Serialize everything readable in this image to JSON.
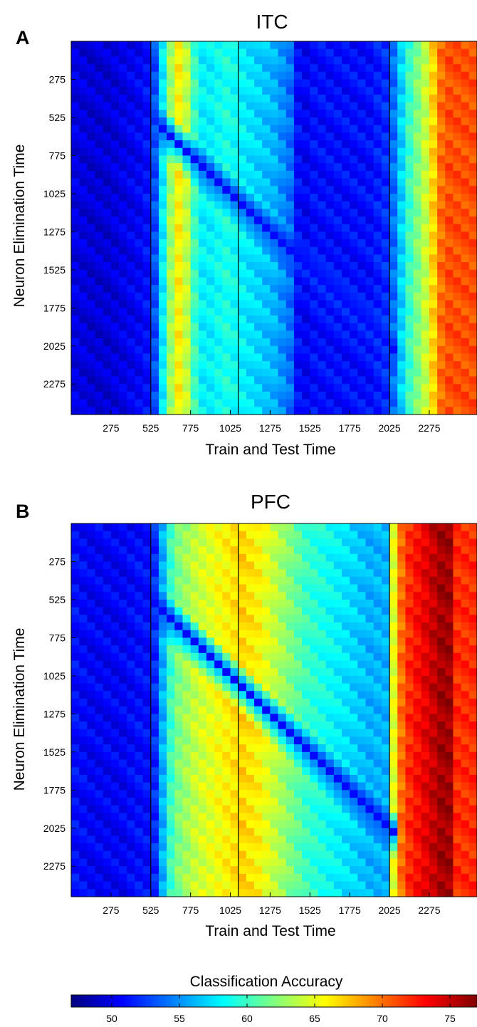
{
  "chart_data": [
    {
      "type": "heatmap",
      "panel_letter": "A",
      "title": "ITC",
      "xlabel": "Train and Test Time",
      "ylabel": "Neuron Elimination Time",
      "x_ticks": [
        275,
        525,
        775,
        1025,
        1275,
        1525,
        1775,
        2025,
        2275
      ],
      "y_ticks": [
        275,
        525,
        775,
        1025,
        1275,
        1525,
        1775,
        2025,
        2275
      ],
      "xlim": [
        25,
        2575
      ],
      "ylim": [
        25,
        2475
      ],
      "bin_width": 50,
      "vertical_lines": [
        525,
        1075,
        2025
      ],
      "profile_times": [
        50,
        150,
        250,
        350,
        450,
        500,
        550,
        600,
        650,
        700,
        750,
        800,
        850,
        900,
        1000,
        1100,
        1200,
        1300,
        1400,
        1450,
        1500,
        1550,
        1600,
        1700,
        1800,
        1900,
        2000,
        2050,
        2100,
        2150,
        2200,
        2250,
        2300,
        2350,
        2400,
        2450
      ],
      "profile_accuracy": [
        50,
        49.5,
        49.5,
        50,
        50.5,
        51,
        53,
        58,
        63,
        66,
        64,
        60,
        58,
        58,
        59,
        58,
        57,
        56,
        54,
        51,
        50.5,
        51,
        51,
        51,
        51,
        51,
        52,
        54,
        57,
        60,
        62,
        64,
        67,
        70,
        71,
        71
      ],
      "notes_elimination": "accuracy drops to about 52% where train and test time equals neuron elimination time"
    },
    {
      "type": "heatmap",
      "panel_letter": "B",
      "title": "PFC",
      "xlabel": "Train and Test Time",
      "ylabel": "Neuron Elimination Time",
      "x_ticks": [
        275,
        525,
        775,
        1025,
        1275,
        1525,
        1775,
        2025,
        2275
      ],
      "y_ticks": [
        275,
        525,
        775,
        1025,
        1275,
        1525,
        1775,
        2025,
        2275
      ],
      "xlim": [
        25,
        2575
      ],
      "ylim": [
        25,
        2475
      ],
      "bin_width": 50,
      "vertical_lines": [
        525,
        1075,
        2025
      ],
      "profile_times": [
        50,
        150,
        250,
        350,
        450,
        500,
        550,
        600,
        650,
        700,
        800,
        900,
        1000,
        1100,
        1200,
        1300,
        1400,
        1500,
        1600,
        1700,
        1800,
        1900,
        2000,
        2050,
        2100,
        2150,
        2200,
        2250,
        2300,
        2350,
        2400,
        2450
      ],
      "profile_accuracy": [
        51,
        50.5,
        50.5,
        50.5,
        51,
        51,
        52,
        56,
        60,
        62,
        64,
        65,
        66,
        67,
        66,
        64,
        62,
        60,
        59,
        58,
        57,
        56,
        56,
        65,
        70,
        72,
        73,
        74,
        75,
        76,
        76,
        72
      ],
      "notes_elimination": "accuracy drops to about 52% where train and test time equals neuron elimination time"
    }
  ],
  "colorbar": {
    "label": "Classification Accuracy",
    "min": 47,
    "max": 77,
    "ticks": [
      50,
      55,
      60,
      65,
      70,
      75
    ],
    "colormap": "jet"
  }
}
